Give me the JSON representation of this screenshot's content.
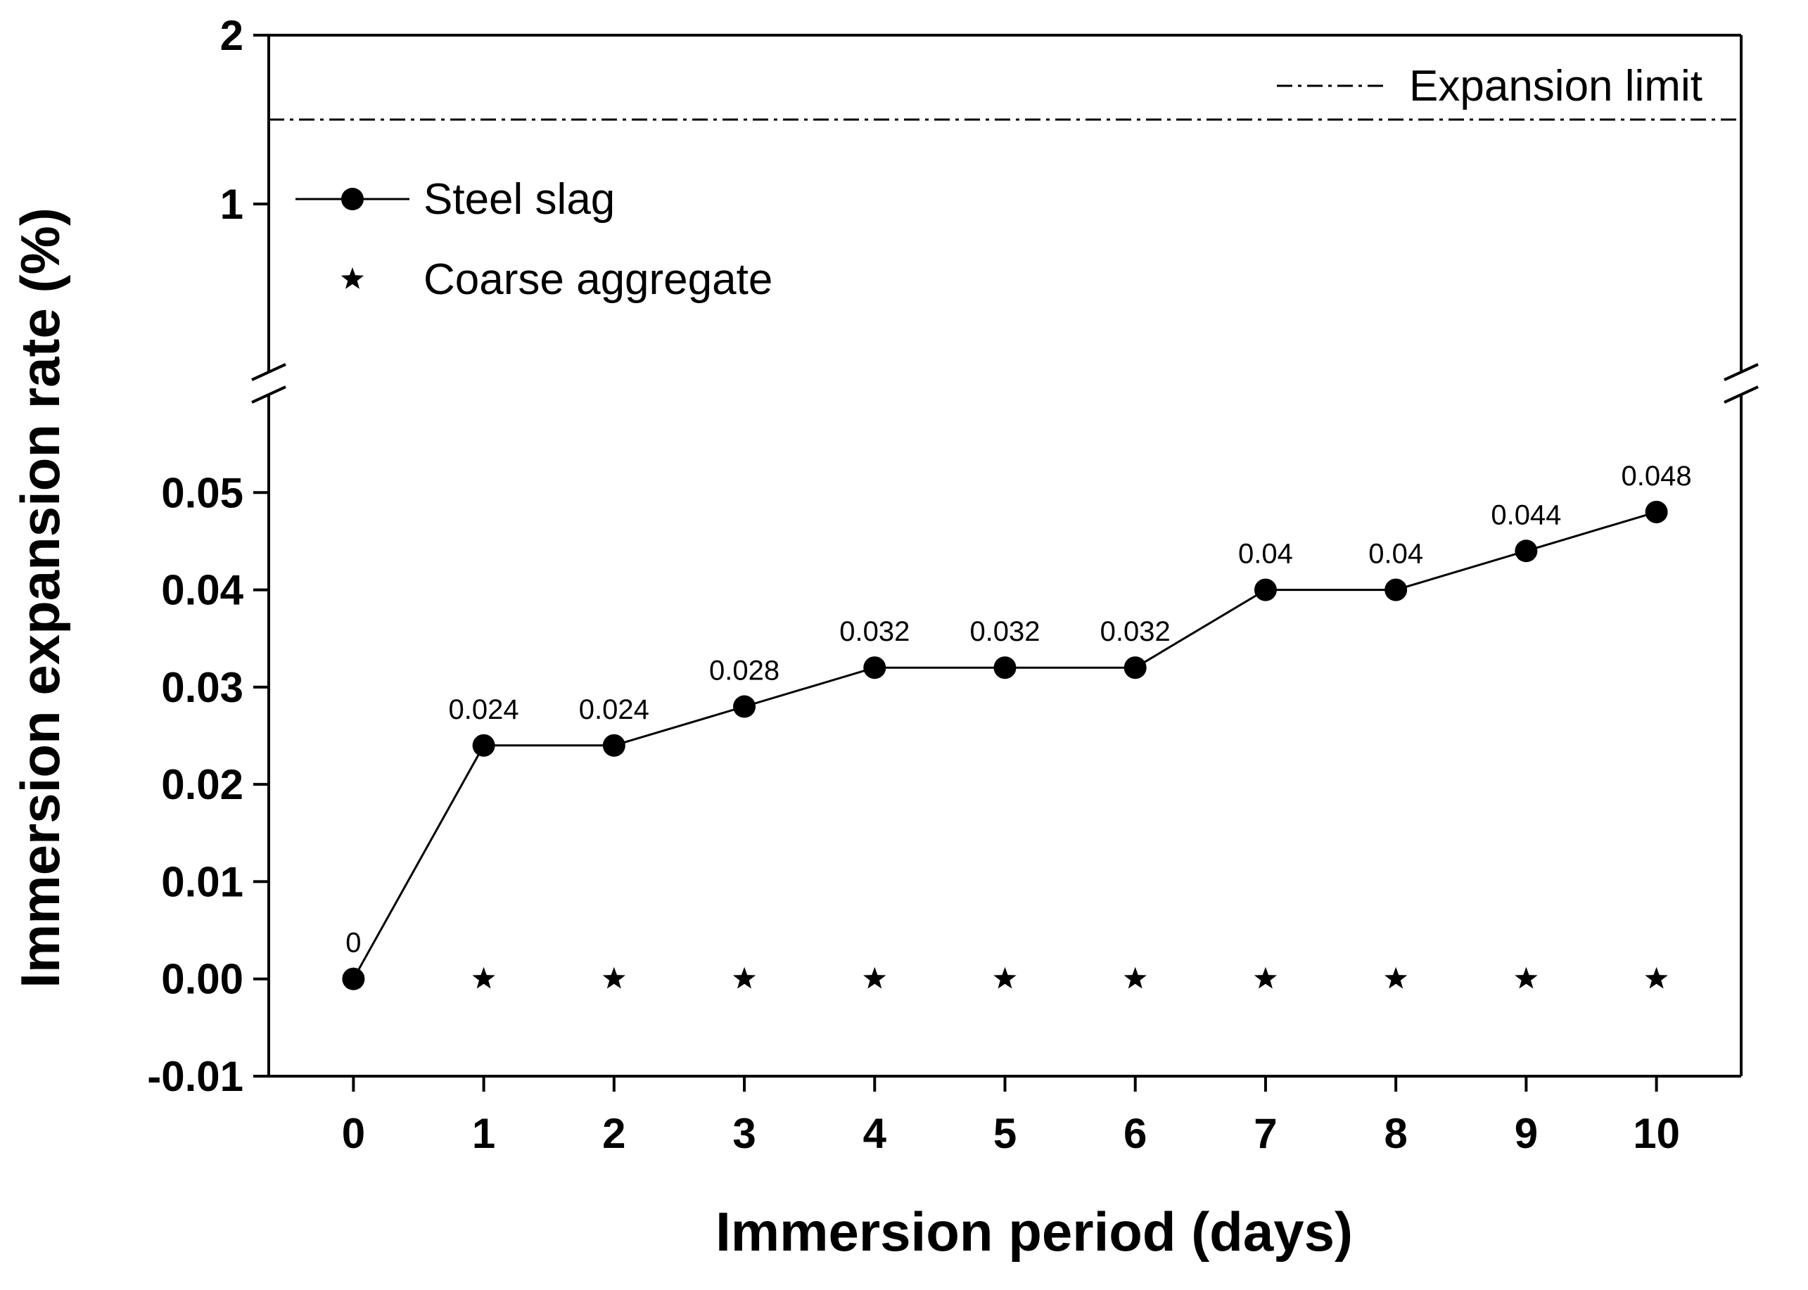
{
  "chart_data": {
    "type": "line",
    "title": "",
    "xlabel": "Immersion period (days)",
    "ylabel": "Immersion expansion rate (%)",
    "x": [
      0,
      1,
      2,
      3,
      4,
      5,
      6,
      7,
      8,
      9,
      10
    ],
    "x_ticks": [
      "0",
      "1",
      "2",
      "3",
      "4",
      "5",
      "6",
      "7",
      "8",
      "9",
      "10"
    ],
    "xlim": [
      -0.65,
      10.65
    ],
    "y_lower_range": [
      -0.01,
      0.06
    ],
    "y_upper_range": [
      0,
      2
    ],
    "y_ticks_lower": [
      "-0.01",
      "0.00",
      "0.01",
      "0.02",
      "0.03",
      "0.04",
      "0.05"
    ],
    "y_ticks_upper": [
      "1",
      "2"
    ],
    "y_axis_break": true,
    "series": [
      {
        "name": "Steel slag",
        "marker": "circle",
        "line": "solid",
        "values": [
          0,
          0.024,
          0.024,
          0.028,
          0.032,
          0.032,
          0.032,
          0.04,
          0.04,
          0.044,
          0.048
        ],
        "data_labels": [
          "0",
          "0.024",
          "0.024",
          "0.028",
          "0.032",
          "0.032",
          "0.032",
          "0.04",
          "0.04",
          "0.044",
          "0.048"
        ]
      },
      {
        "name": "Coarse aggregate",
        "marker": "star",
        "line": "none",
        "values": [
          0,
          0,
          0,
          0,
          0,
          0,
          0,
          0,
          0,
          0,
          0
        ]
      }
    ],
    "reference_lines": [
      {
        "name": "Expansion limit",
        "value": 1.5,
        "style": "dash-dot"
      }
    ],
    "legend_position": "top-left",
    "reference_legend_position": "top-right",
    "grid": false
  }
}
